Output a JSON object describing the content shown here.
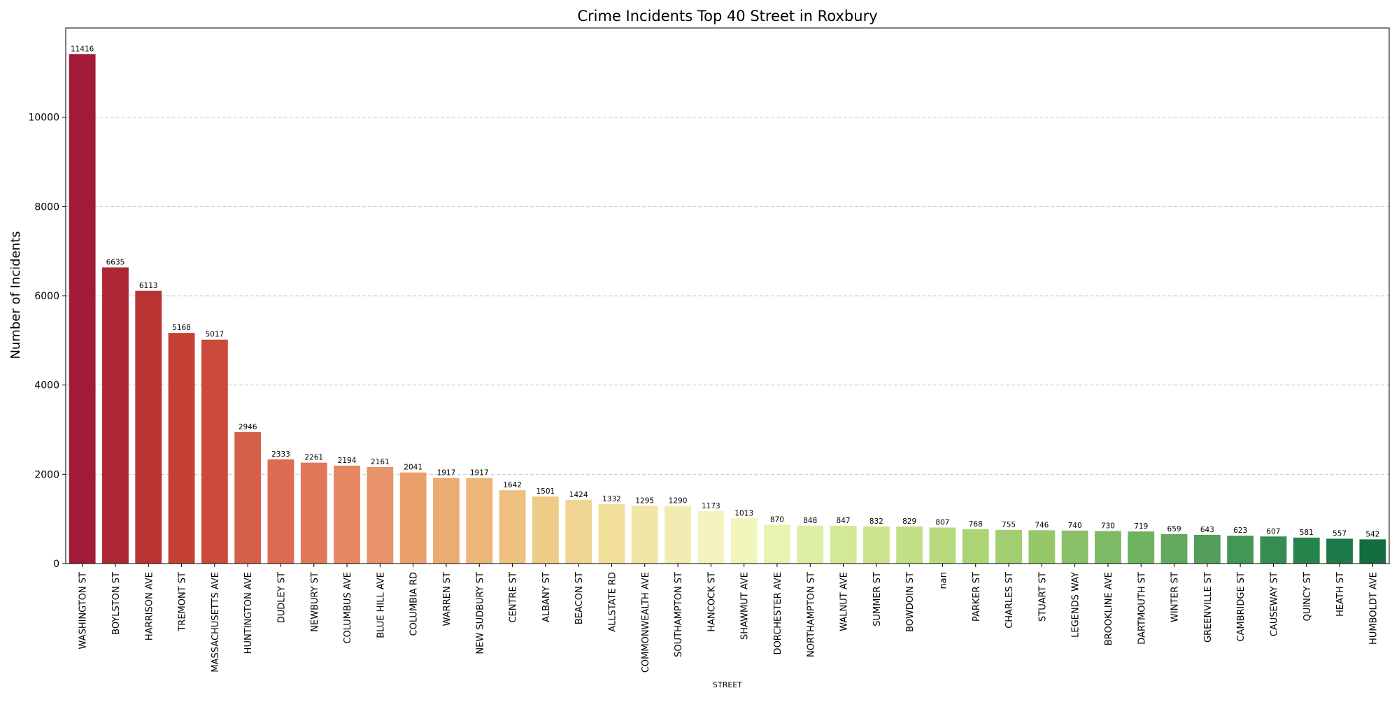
{
  "chart_data": {
    "type": "bar",
    "title": "Crime Incidents Top 40 Street in Roxbury",
    "xlabel": "STREET",
    "ylabel": "Number of Incidents",
    "ylim": [
      0,
      12000
    ],
    "yticks": [
      0,
      2000,
      4000,
      6000,
      8000,
      10000
    ],
    "grid": "y-dashed",
    "categories": [
      "WASHINGTON ST",
      "BOYLSTON ST",
      "HARRISON AVE",
      "TREMONT ST",
      "MASSACHUSETTS AVE",
      "HUNTINGTON AVE",
      "DUDLEY ST",
      "NEWBURY ST",
      "COLUMBUS AVE",
      "BLUE HILL AVE",
      "COLUMBIA RD",
      "WARREN ST",
      "NEW SUDBURY ST",
      "CENTRE ST",
      "ALBANY ST",
      "BEACON ST",
      "ALLSTATE RD",
      "COMMONWEALTH AVE",
      "SOUTHAMPTON ST",
      "HANCOCK ST",
      "SHAWMUT AVE",
      "DORCHESTER AVE",
      "NORTHAMPTON ST",
      "WALNUT AVE",
      "SUMMER ST",
      "BOWDOIN ST",
      "nan",
      "PARKER ST",
      "CHARLES ST",
      "STUART ST",
      "LEGENDS WAY",
      "BROOKLINE AVE",
      "DARTMOUTH ST",
      "WINTER ST",
      "GREENVILLE ST",
      "CAMBRIDGE ST",
      "CAUSEWAY ST",
      "QUINCY ST",
      "HEATH ST",
      "HUMBOLDT AVE"
    ],
    "values": [
      11416,
      6635,
      6113,
      5168,
      5017,
      2946,
      2333,
      2261,
      2194,
      2161,
      2041,
      1917,
      1917,
      1642,
      1501,
      1424,
      1332,
      1295,
      1290,
      1173,
      1013,
      870,
      848,
      847,
      832,
      829,
      807,
      768,
      755,
      746,
      740,
      730,
      719,
      659,
      643,
      623,
      607,
      581,
      557,
      542
    ],
    "colors": [
      "#a11b36",
      "#ae2734",
      "#ba3433",
      "#c44134",
      "#cc4a3a",
      "#d65f4a",
      "#dd6b51",
      "#e27759",
      "#e68762",
      "#e8936a",
      "#eba06c",
      "#ebac73",
      "#ecb679",
      "#eec180",
      "#efcb88",
      "#f0d592",
      "#f1df9a",
      "#f2e6a6",
      "#f3ecb2",
      "#f5f2bd",
      "#f2f5bb",
      "#e8f3b0",
      "#ddeea5",
      "#d4e996",
      "#cbe48c",
      "#c1e083",
      "#b8da7d",
      "#acd475",
      "#a1ce70",
      "#96c86a",
      "#89c068",
      "#7cba65",
      "#6fb262",
      "#62a95e",
      "#539f5a",
      "#449656",
      "#358d51",
      "#26854d",
      "#1b7a47",
      "#146d3f"
    ]
  }
}
